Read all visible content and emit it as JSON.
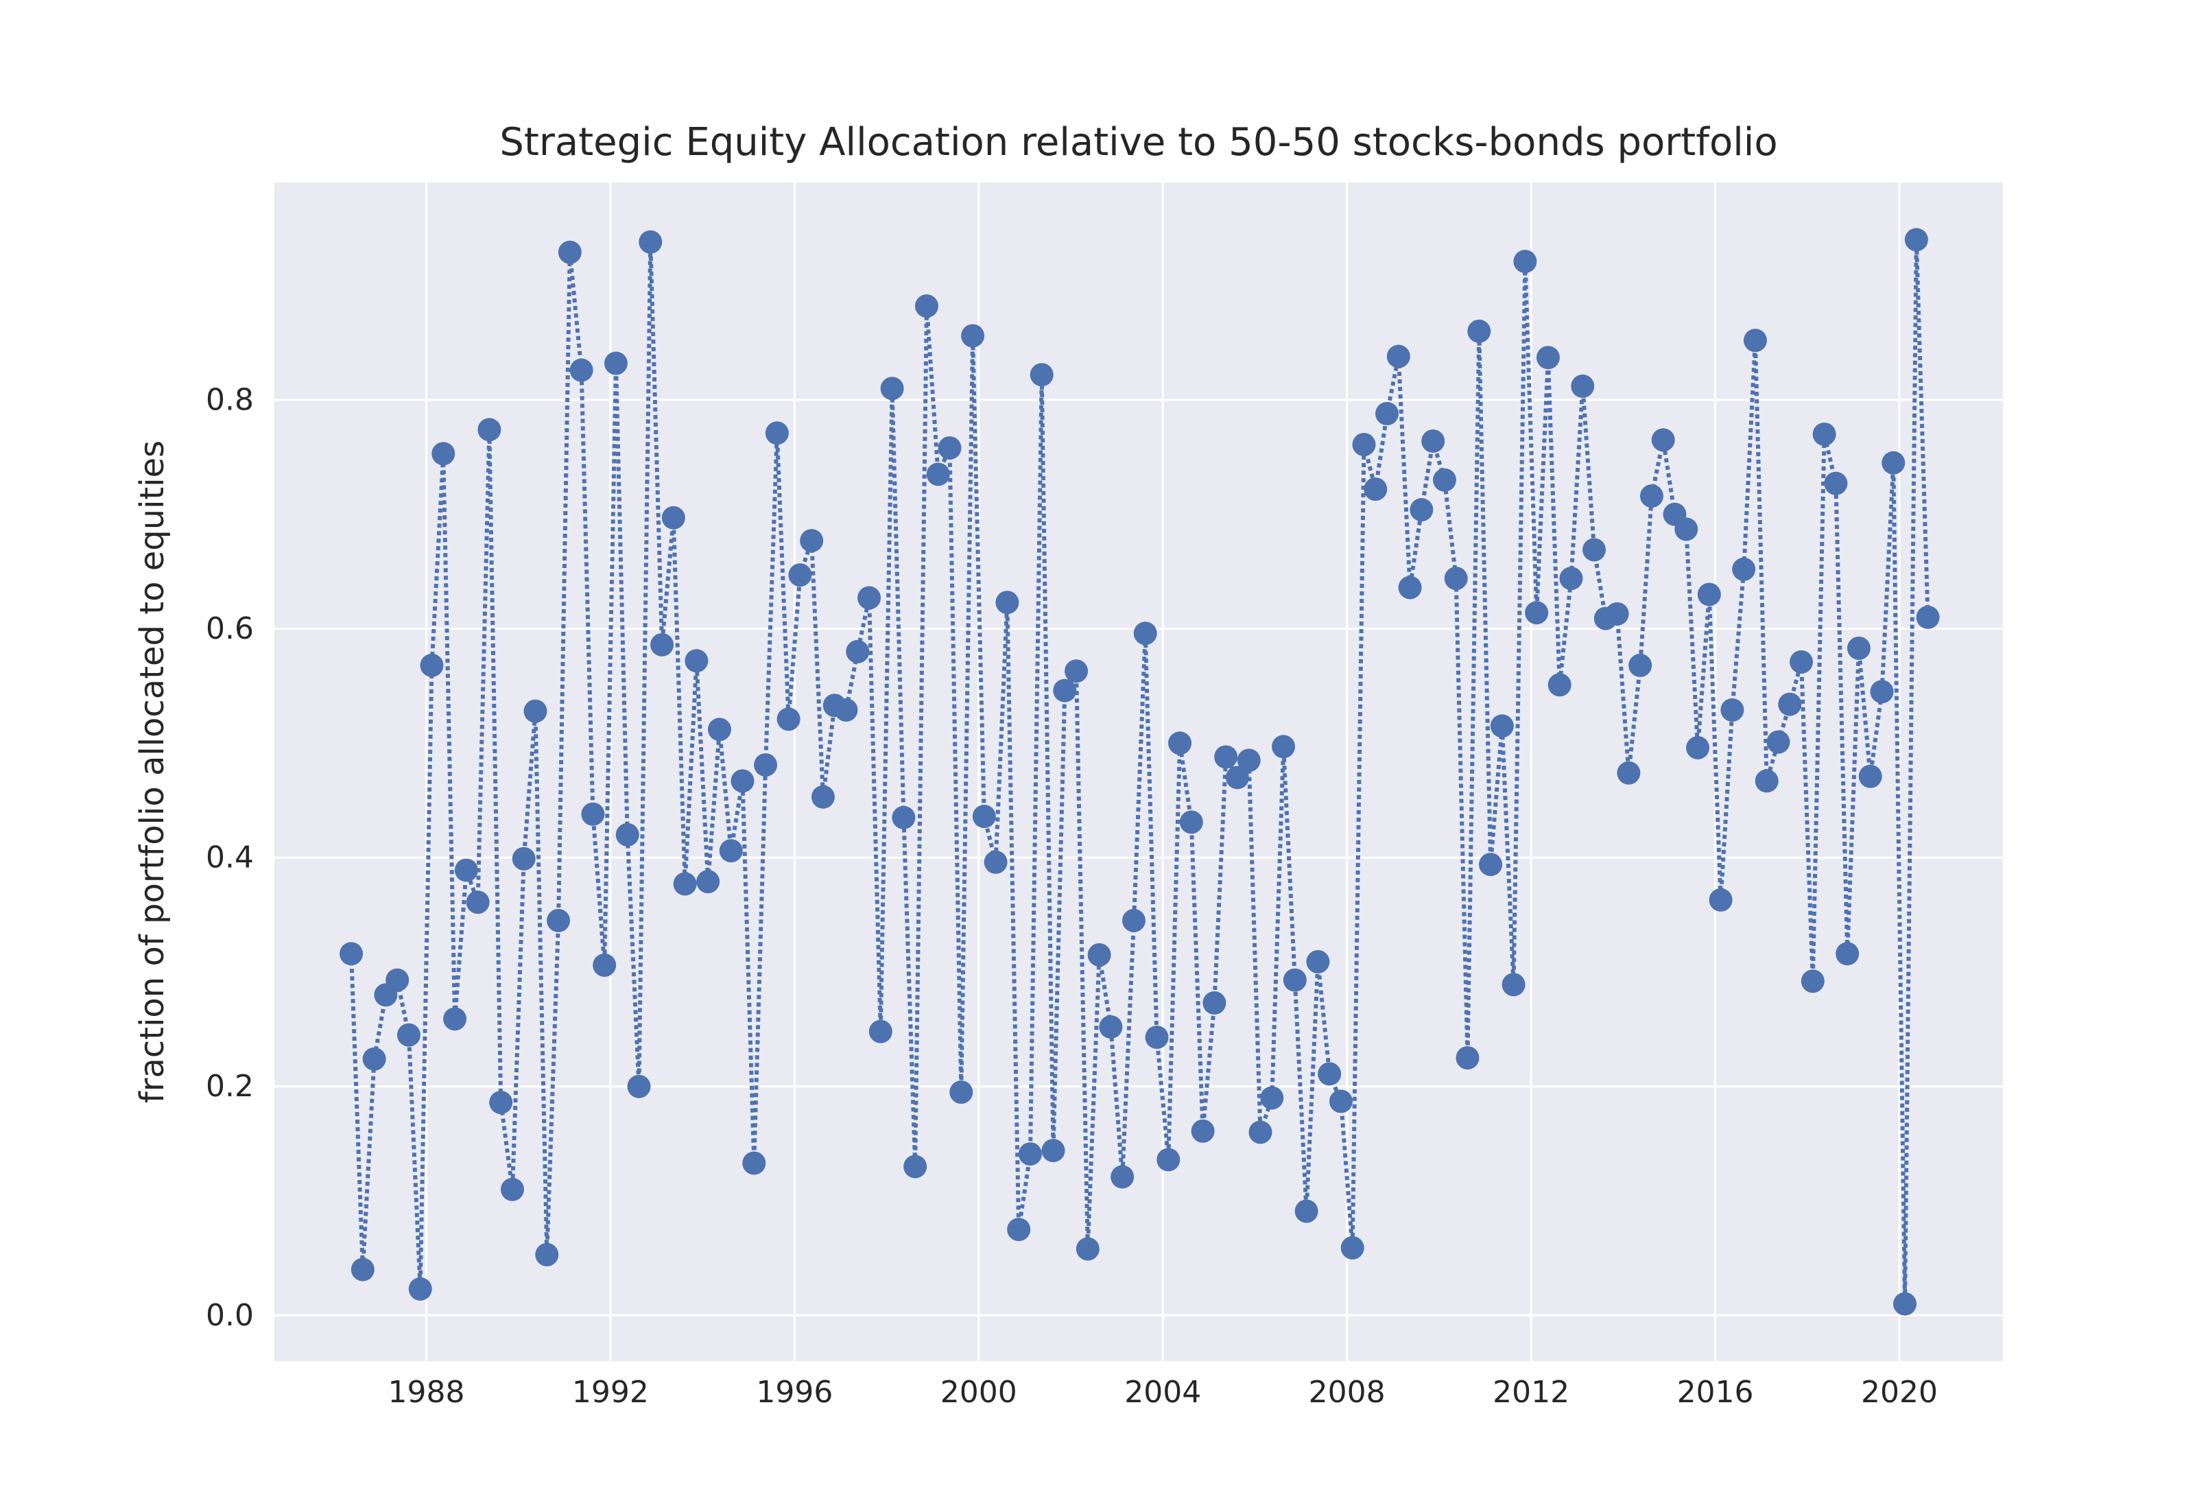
{
  "chart_data": {
    "type": "line",
    "title": "Strategic Equity Allocation relative to 50-50 stocks-bonds portfolio",
    "xlabel": "",
    "ylabel": "fraction of portfolio allocated to equities",
    "xlim": [
      1984.7,
      2022.25
    ],
    "ylim": [
      -0.04,
      0.99
    ],
    "x_ticks": [
      "1988",
      "1992",
      "1996",
      "2000",
      "2004",
      "2008",
      "2012",
      "2016",
      "2020"
    ],
    "y_ticks": [
      "0.0",
      "0.2",
      "0.4",
      "0.6",
      "0.8"
    ],
    "grid": true,
    "line_style": "dotted",
    "marker": "circle",
    "color": "#4c72b0",
    "background": "#eaeaf2",
    "series": [
      {
        "x": [
          1986.37,
          1986.62,
          1986.87,
          1987.12,
          1987.37,
          1987.62,
          1987.87,
          1988.12,
          1988.37,
          1988.62,
          1988.87,
          1989.12,
          1989.37,
          1989.62,
          1989.87,
          1990.12,
          1990.37,
          1990.62,
          1990.87,
          1991.12,
          1991.37,
          1991.62,
          1991.87,
          1992.12,
          1992.37,
          1992.62,
          1992.87,
          1993.12,
          1993.37,
          1993.62,
          1993.87,
          1994.12,
          1994.37,
          1994.62,
          1994.87,
          1995.12,
          1995.37,
          1995.62,
          1995.87,
          1996.12,
          1996.37,
          1996.62,
          1996.87,
          1997.12,
          1997.37,
          1997.62,
          1997.87,
          1998.12,
          1998.37,
          1998.62,
          1998.87,
          1999.12,
          1999.37,
          1999.62,
          1999.87,
          2000.12,
          2000.37,
          2000.62,
          2000.87,
          2001.12,
          2001.37,
          2001.62,
          2001.87,
          2002.12,
          2002.37,
          2002.62,
          2002.87,
          2003.12,
          2003.37,
          2003.62,
          2003.87,
          2004.12,
          2004.37,
          2004.62,
          2004.87,
          2005.12,
          2005.37,
          2005.62,
          2005.87,
          2006.12,
          2006.37,
          2006.62,
          2006.87,
          2007.12,
          2007.37,
          2007.62,
          2007.87,
          2008.12,
          2008.37,
          2008.62,
          2008.87,
          2009.12,
          2009.37,
          2009.62,
          2009.87,
          2010.12,
          2010.37,
          2010.62,
          2010.87,
          2011.12,
          2011.37,
          2011.62,
          2011.87,
          2012.12,
          2012.37,
          2012.62,
          2012.87,
          2013.12,
          2013.37,
          2013.62,
          2013.87,
          2014.12,
          2014.37,
          2014.62,
          2014.87,
          2015.12,
          2015.37,
          2015.62,
          2015.87,
          2016.12,
          2016.37,
          2016.62,
          2016.87,
          2017.12,
          2017.37,
          2017.62,
          2017.87,
          2018.12,
          2018.37,
          2018.62,
          2018.87,
          2019.12,
          2019.37,
          2019.62,
          2019.87,
          2020.12,
          2020.37,
          2020.62
        ],
        "values": [
          0.316,
          0.04,
          0.224,
          0.28,
          0.293,
          0.245,
          0.023,
          0.568,
          0.753,
          0.259,
          0.389,
          0.361,
          0.774,
          0.186,
          0.11,
          0.399,
          0.528,
          0.053,
          0.345,
          0.929,
          0.826,
          0.438,
          0.306,
          0.832,
          0.42,
          0.2,
          0.938,
          0.586,
          0.697,
          0.377,
          0.572,
          0.379,
          0.512,
          0.406,
          0.467,
          0.133,
          0.481,
          0.771,
          0.521,
          0.647,
          0.677,
          0.453,
          0.533,
          0.529,
          0.58,
          0.627,
          0.248,
          0.81,
          0.435,
          0.13,
          0.882,
          0.735,
          0.758,
          0.195,
          0.856,
          0.436,
          0.396,
          0.623,
          0.075,
          0.141,
          0.822,
          0.144,
          0.546,
          0.563,
          0.058,
          0.315,
          0.252,
          0.121,
          0.345,
          0.596,
          0.243,
          0.136,
          0.5,
          0.431,
          0.161,
          0.273,
          0.488,
          0.47,
          0.485,
          0.16,
          0.19,
          0.497,
          0.293,
          0.091,
          0.309,
          0.211,
          0.187,
          0.059,
          0.761,
          0.722,
          0.788,
          0.838,
          0.636,
          0.704,
          0.764,
          0.73,
          0.644,
          0.225,
          0.86,
          0.394,
          0.515,
          0.289,
          0.921,
          0.614,
          0.837,
          0.551,
          0.644,
          0.812,
          0.669,
          0.609,
          0.613,
          0.474,
          0.568,
          0.716,
          0.765,
          0.7,
          0.687,
          0.496,
          0.63,
          0.363,
          0.529,
          0.652,
          0.852,
          0.467,
          0.501,
          0.534,
          0.571,
          0.292,
          0.77,
          0.727,
          0.316,
          0.583,
          0.471,
          0.545,
          0.745,
          0.01,
          0.94,
          0.61
        ]
      }
    ]
  }
}
